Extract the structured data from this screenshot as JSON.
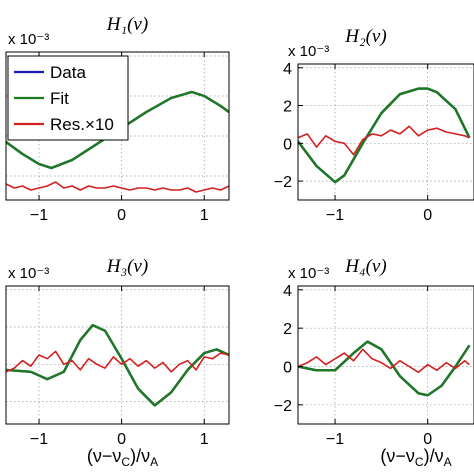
{
  "chart_data": [
    {
      "type": "line",
      "title": "H₁(ν)",
      "exponent_label": "x 10⁻³",
      "xlabel": "",
      "xlim": [
        -1.4,
        1.3
      ],
      "ylim": [
        -3.2,
        4.2
      ],
      "x_ticks": [
        -1,
        0,
        1
      ],
      "y_ticks": [],
      "grid": true,
      "legend": {
        "placement": "top-left",
        "entries": [
          "Data",
          "Fit",
          "Res.×10"
        ]
      },
      "series": [
        {
          "name": "Data",
          "color": "#1a1ab0",
          "x": [
            -1.4,
            -1.2,
            -1.0,
            -0.85,
            -0.6,
            -0.3,
            0.0,
            0.3,
            0.6,
            0.85,
            1.0,
            1.2,
            1.3
          ],
          "y": [
            -0.3,
            -0.9,
            -1.4,
            -1.6,
            -1.2,
            -0.4,
            0.4,
            1.2,
            1.9,
            2.2,
            2.0,
            1.5,
            1.2
          ]
        },
        {
          "name": "Fit",
          "color": "#1e7a1e",
          "x": [
            -1.4,
            -1.2,
            -1.0,
            -0.85,
            -0.6,
            -0.3,
            0.0,
            0.3,
            0.6,
            0.85,
            1.0,
            1.2,
            1.3
          ],
          "y": [
            -0.3,
            -0.9,
            -1.4,
            -1.6,
            -1.2,
            -0.4,
            0.4,
            1.2,
            1.9,
            2.2,
            2.0,
            1.5,
            1.2
          ]
        },
        {
          "name": "Res.×10",
          "color": "#d42020",
          "x": [
            -1.4,
            -1.3,
            -1.2,
            -1.1,
            -1.0,
            -0.9,
            -0.8,
            -0.7,
            -0.6,
            -0.5,
            -0.4,
            -0.3,
            -0.2,
            -0.1,
            0.0,
            0.1,
            0.2,
            0.3,
            0.4,
            0.5,
            0.6,
            0.7,
            0.8,
            0.9,
            1.0,
            1.1,
            1.2,
            1.3
          ],
          "y": [
            -2.4,
            -2.6,
            -2.5,
            -2.7,
            -2.6,
            -2.5,
            -2.3,
            -2.6,
            -2.5,
            -2.7,
            -2.5,
            -2.6,
            -2.6,
            -2.5,
            -2.6,
            -2.7,
            -2.6,
            -2.6,
            -2.7,
            -2.6,
            -2.7,
            -2.7,
            -2.6,
            -2.8,
            -2.7,
            -2.6,
            -2.7,
            -2.5
          ]
        }
      ]
    },
    {
      "type": "line",
      "title": "H₂(ν)",
      "exponent_label": "x 10⁻³",
      "xlabel": "",
      "xlim": [
        -1.4,
        0.5
      ],
      "ylim": [
        -3.0,
        4.2
      ],
      "x_ticks": [
        -1,
        0
      ],
      "y_ticks": [
        -2,
        0,
        2,
        4
      ],
      "grid": true,
      "series": [
        {
          "name": "Data",
          "color": "#1a1ab0",
          "x": [
            -1.4,
            -1.2,
            -1.0,
            -0.9,
            -0.7,
            -0.5,
            -0.3,
            -0.1,
            0.0,
            0.1,
            0.3,
            0.45
          ],
          "y": [
            0.1,
            -1.2,
            -2.05,
            -1.7,
            0.0,
            1.6,
            2.6,
            2.9,
            2.9,
            2.7,
            1.8,
            0.3
          ]
        },
        {
          "name": "Fit",
          "color": "#1e7a1e",
          "x": [
            -1.4,
            -1.2,
            -1.0,
            -0.9,
            -0.7,
            -0.5,
            -0.3,
            -0.1,
            0.0,
            0.1,
            0.3,
            0.45
          ],
          "y": [
            0.1,
            -1.2,
            -2.05,
            -1.7,
            0.0,
            1.6,
            2.6,
            2.9,
            2.9,
            2.7,
            1.8,
            0.3
          ]
        },
        {
          "name": "Res.×10",
          "color": "#d42020",
          "x": [
            -1.4,
            -1.3,
            -1.2,
            -1.1,
            -1.0,
            -0.9,
            -0.8,
            -0.7,
            -0.6,
            -0.5,
            -0.4,
            -0.3,
            -0.2,
            -0.1,
            0.0,
            0.1,
            0.2,
            0.3,
            0.4,
            0.45
          ],
          "y": [
            0.3,
            0.5,
            -0.2,
            0.4,
            0.1,
            0.0,
            -0.6,
            0.2,
            0.5,
            0.4,
            0.7,
            0.5,
            0.9,
            0.4,
            0.7,
            0.8,
            0.6,
            0.5,
            0.4,
            0.3
          ]
        }
      ]
    },
    {
      "type": "line",
      "title": "H₃(ν)",
      "exponent_label": "x 10⁻³",
      "xlabel": "(ν−ν_C)/ν_A",
      "xlim": [
        -1.4,
        1.3
      ],
      "ylim": [
        -3.2,
        4.2
      ],
      "x_ticks": [
        -1,
        0,
        1
      ],
      "y_ticks": [],
      "grid": true,
      "series": [
        {
          "name": "Data",
          "color": "#1a1ab0",
          "x": [
            -1.4,
            -1.1,
            -0.9,
            -0.7,
            -0.5,
            -0.35,
            -0.2,
            0.0,
            0.2,
            0.4,
            0.6,
            0.8,
            1.0,
            1.15,
            1.3
          ],
          "y": [
            -0.3,
            -0.4,
            -0.8,
            -0.4,
            1.3,
            2.1,
            1.8,
            0.3,
            -1.3,
            -2.2,
            -1.5,
            -0.3,
            0.6,
            0.8,
            0.5
          ]
        },
        {
          "name": "Fit",
          "color": "#1e7a1e",
          "x": [
            -1.4,
            -1.1,
            -0.9,
            -0.7,
            -0.5,
            -0.35,
            -0.2,
            0.0,
            0.2,
            0.4,
            0.6,
            0.8,
            1.0,
            1.15,
            1.3
          ],
          "y": [
            -0.3,
            -0.4,
            -0.8,
            -0.4,
            1.3,
            2.1,
            1.8,
            0.3,
            -1.3,
            -2.2,
            -1.5,
            -0.3,
            0.6,
            0.8,
            0.5
          ]
        },
        {
          "name": "Res.×10",
          "color": "#d42020",
          "x": [
            -1.4,
            -1.3,
            -1.2,
            -1.1,
            -1.0,
            -0.9,
            -0.8,
            -0.7,
            -0.6,
            -0.5,
            -0.4,
            -0.3,
            -0.2,
            -0.1,
            0.0,
            0.1,
            0.2,
            0.3,
            0.4,
            0.5,
            0.6,
            0.7,
            0.8,
            0.9,
            1.0,
            1.1,
            1.2,
            1.3
          ],
          "y": [
            -0.4,
            -0.2,
            0.2,
            -0.1,
            0.5,
            0.3,
            0.7,
            0.0,
            0.2,
            -0.3,
            0.3,
            0.0,
            -0.2,
            0.4,
            0.0,
            0.3,
            -0.1,
            0.2,
            -0.2,
            0.1,
            -0.4,
            0.0,
            0.2,
            -0.3,
            0.4,
            0.3,
            0.6,
            0.5
          ]
        }
      ]
    },
    {
      "type": "line",
      "title": "H₄(ν)",
      "exponent_label": "x 10⁻³",
      "xlabel": "(ν−ν_C)/ν_A",
      "xlim": [
        -1.4,
        0.5
      ],
      "ylim": [
        -3.0,
        4.2
      ],
      "x_ticks": [
        -1,
        0
      ],
      "y_ticks": [
        -2,
        0,
        2,
        4
      ],
      "grid": true,
      "series": [
        {
          "name": "Data",
          "color": "#1a1ab0",
          "x": [
            -1.4,
            -1.2,
            -1.0,
            -0.8,
            -0.65,
            -0.5,
            -0.3,
            -0.1,
            0.0,
            0.15,
            0.3,
            0.45
          ],
          "y": [
            0.0,
            -0.2,
            -0.2,
            0.7,
            1.3,
            0.9,
            -0.5,
            -1.4,
            -1.5,
            -1.0,
            0.0,
            1.1
          ]
        },
        {
          "name": "Fit",
          "color": "#1e7a1e",
          "x": [
            -1.4,
            -1.2,
            -1.0,
            -0.8,
            -0.65,
            -0.5,
            -0.3,
            -0.1,
            0.0,
            0.15,
            0.3,
            0.45
          ],
          "y": [
            0.0,
            -0.2,
            -0.2,
            0.7,
            1.3,
            0.9,
            -0.5,
            -1.4,
            -1.5,
            -1.0,
            0.0,
            1.1
          ]
        },
        {
          "name": "Res.×10",
          "color": "#d42020",
          "x": [
            -1.4,
            -1.3,
            -1.2,
            -1.1,
            -1.0,
            -0.9,
            -0.8,
            -0.7,
            -0.6,
            -0.5,
            -0.4,
            -0.3,
            -0.2,
            -0.1,
            0.0,
            0.1,
            0.2,
            0.3,
            0.4,
            0.45
          ],
          "y": [
            0.0,
            0.2,
            0.5,
            0.1,
            0.4,
            0.7,
            0.3,
            0.9,
            0.4,
            0.2,
            -0.1,
            0.3,
            0.0,
            -0.3,
            0.1,
            -0.2,
            0.2,
            -0.1,
            0.3,
            0.1
          ]
        }
      ]
    }
  ]
}
